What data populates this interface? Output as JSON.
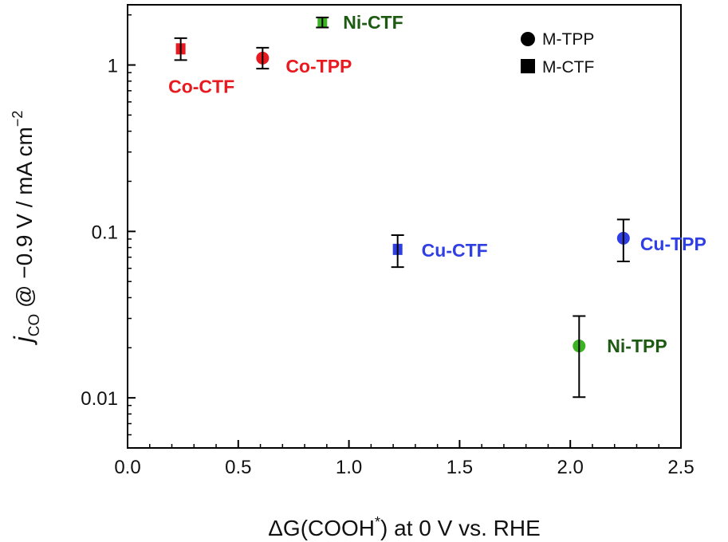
{
  "chart_data": {
    "type": "scatter",
    "title": "",
    "xlabel": "ΔG(COOH*) at 0 V vs. RHE",
    "xlabel_parts": {
      "prefix": "ΔG(COOH",
      "sup": "*",
      "suffix": ") at 0 V vs. RHE"
    },
    "ylabel": "jCO @ −0.9 V / mA cm−2",
    "ylabel_parts": {
      "j": "j",
      "sub": "CO",
      "mid": " @ −0.9 V / mA cm",
      "sup": "−2"
    },
    "xlim": [
      0.0,
      2.5
    ],
    "ylim": [
      0.005,
      2.3
    ],
    "yscale": "log",
    "xticks": [
      "0.0",
      "0.5",
      "1.0",
      "1.5",
      "2.0",
      "2.5"
    ],
    "yticks": [
      "0.01",
      "0.1",
      "1"
    ],
    "legend_position": "top-right",
    "legend": [
      {
        "marker": "circle",
        "label": "M-TPP"
      },
      {
        "marker": "square",
        "label": "M-CTF"
      }
    ],
    "colors": {
      "red": "#e8191f",
      "green_fill": "#3cb323",
      "green_text": "#1d5b12",
      "blue": "#2f3fe3",
      "black": "#000000"
    },
    "points": [
      {
        "name": "Co-CTF",
        "x": 0.24,
        "y": 1.25,
        "err_low": 1.07,
        "err_high": 1.45,
        "marker": "square",
        "color": "#e8191f",
        "label_color": "#e8191f"
      },
      {
        "name": "Co-TPP",
        "x": 0.61,
        "y": 1.1,
        "err_low": 0.95,
        "err_high": 1.27,
        "marker": "circle",
        "color": "#e8191f",
        "label_color": "#e8191f"
      },
      {
        "name": "Ni-CTF",
        "x": 0.88,
        "y": 1.8,
        "err_low": 1.68,
        "err_high": 1.93,
        "marker": "square",
        "color": "#3cb323",
        "label_color": "#1d5b12"
      },
      {
        "name": "Cu-CTF",
        "x": 1.22,
        "y": 0.078,
        "err_low": 0.061,
        "err_high": 0.095,
        "marker": "square",
        "color": "#2f3fe3",
        "label_color": "#2f3fe3"
      },
      {
        "name": "Ni-TPP",
        "x": 2.04,
        "y": 0.0205,
        "err_low": 0.0101,
        "err_high": 0.031,
        "marker": "circle",
        "color": "#3cb323",
        "label_color": "#1d5b12"
      },
      {
        "name": "Cu-TPP",
        "x": 2.24,
        "y": 0.091,
        "err_low": 0.066,
        "err_high": 0.118,
        "marker": "circle",
        "color": "#2f3fe3",
        "label_color": "#2f3fe3"
      }
    ]
  }
}
